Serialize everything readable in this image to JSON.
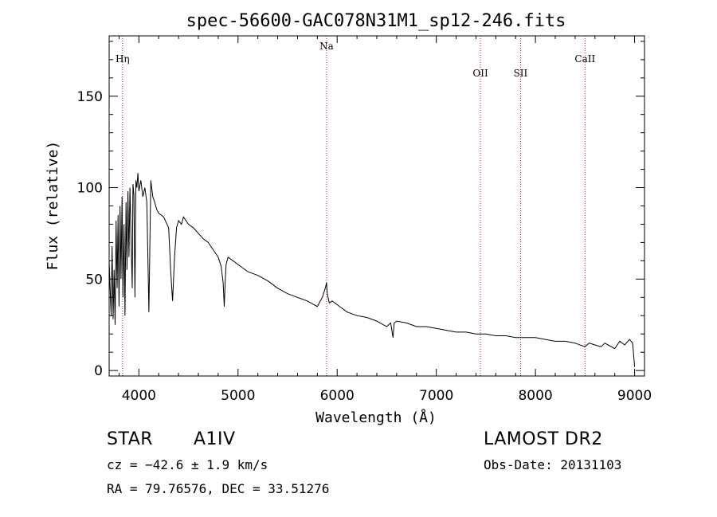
{
  "chart_data": {
    "type": "line",
    "title": "spec-56600-GAC078N31M1_sp12-246.fits",
    "xlabel": "Wavelength (Å)",
    "ylabel": "Flux (relative)",
    "xlim": [
      3700,
      9100
    ],
    "ylim": [
      -3,
      183
    ],
    "xticks": [
      4000,
      5000,
      6000,
      7000,
      8000,
      9000
    ],
    "yticks": [
      0,
      50,
      100,
      150
    ],
    "lines": [
      {
        "label": "Hη",
        "x": 3835
      },
      {
        "label": "Na",
        "x": 5893
      },
      {
        "label": "OII",
        "x": 7445
      },
      {
        "label": "SII",
        "x": 7850
      },
      {
        "label": "CaII",
        "x": 8500
      }
    ],
    "series": [
      {
        "name": "flux",
        "x": [
          3700,
          3710,
          3720,
          3730,
          3740,
          3750,
          3760,
          3770,
          3780,
          3790,
          3800,
          3810,
          3820,
          3830,
          3840,
          3850,
          3860,
          3870,
          3880,
          3890,
          3900,
          3910,
          3920,
          3933,
          3940,
          3950,
          3960,
          3970,
          3980,
          3990,
          4000,
          4020,
          4040,
          4060,
          4080,
          4101,
          4120,
          4140,
          4160,
          4180,
          4200,
          4250,
          4300,
          4320,
          4340,
          4360,
          4380,
          4400,
          4430,
          4450,
          4500,
          4550,
          4600,
          4650,
          4700,
          4750,
          4800,
          4830,
          4850,
          4861,
          4870,
          4880,
          4900,
          4950,
          5000,
          5050,
          5100,
          5200,
          5300,
          5400,
          5500,
          5600,
          5700,
          5800,
          5850,
          5880,
          5893,
          5900,
          5920,
          5950,
          6000,
          6100,
          6200,
          6300,
          6400,
          6500,
          6540,
          6563,
          6575,
          6600,
          6700,
          6800,
          6900,
          7000,
          7100,
          7200,
          7300,
          7400,
          7500,
          7600,
          7700,
          7800,
          7900,
          8000,
          8100,
          8200,
          8300,
          8400,
          8498,
          8542,
          8600,
          8662,
          8700,
          8800,
          8850,
          8900,
          8950,
          8980,
          9000
        ],
        "values": [
          60,
          45,
          30,
          68,
          28,
          55,
          25,
          82,
          45,
          85,
          35,
          90,
          50,
          95,
          40,
          80,
          30,
          92,
          55,
          98,
          62,
          100,
          75,
          45,
          102,
          96,
          40,
          104,
          100,
          108,
          98,
          104,
          95,
          100,
          92,
          32,
          104,
          95,
          92,
          88,
          86,
          84,
          78,
          55,
          38,
          62,
          78,
          82,
          80,
          84,
          80,
          78,
          75,
          72,
          70,
          66,
          62,
          57,
          48,
          35,
          48,
          58,
          62,
          60,
          58,
          56,
          54,
          52,
          49,
          45,
          42,
          40,
          38,
          35,
          40,
          45,
          48,
          42,
          37,
          38,
          36,
          32,
          30,
          29,
          27,
          24,
          26,
          18,
          26,
          27,
          26,
          24,
          24,
          23,
          22,
          21,
          21,
          20,
          20,
          19,
          19,
          18,
          18,
          18,
          17,
          16,
          16,
          15,
          13,
          15,
          14,
          13,
          15,
          12,
          16,
          14,
          17,
          15,
          2
        ]
      }
    ]
  },
  "footer": {
    "object_type": "STAR",
    "spectral_class": "A1IV",
    "survey": "LAMOST DR2",
    "cz": "cz = −42.6 ± 1.9 km/s",
    "obs_date": "Obs-Date: 20131103",
    "radec": "RA =  79.76576, DEC =  33.51276"
  }
}
